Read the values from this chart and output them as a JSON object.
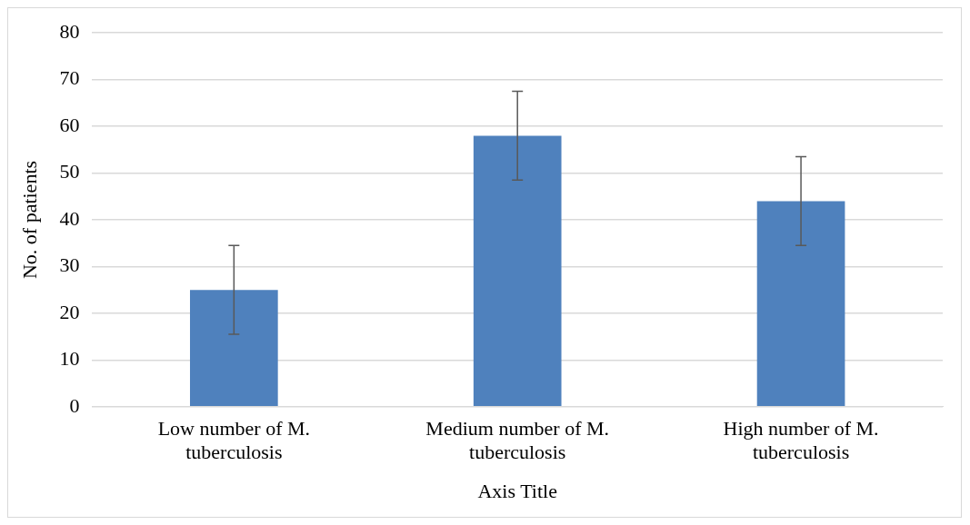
{
  "chart_data": {
    "type": "bar",
    "xlabel": "Axis Title",
    "ylabel": "No. of patients",
    "categories": [
      "Low number of M. tuberculosis",
      "Medium number of M. tuberculosis",
      "High number of M. tuberculosis"
    ],
    "values": [
      25,
      58,
      44
    ],
    "errors": [
      9.5,
      9.5,
      9.5
    ],
    "color": "#4f81bd",
    "ylim": [
      0,
      80
    ],
    "yticks": [
      0,
      10,
      20,
      30,
      40,
      50,
      60,
      70,
      80
    ],
    "grid": "y",
    "legend": false
  }
}
